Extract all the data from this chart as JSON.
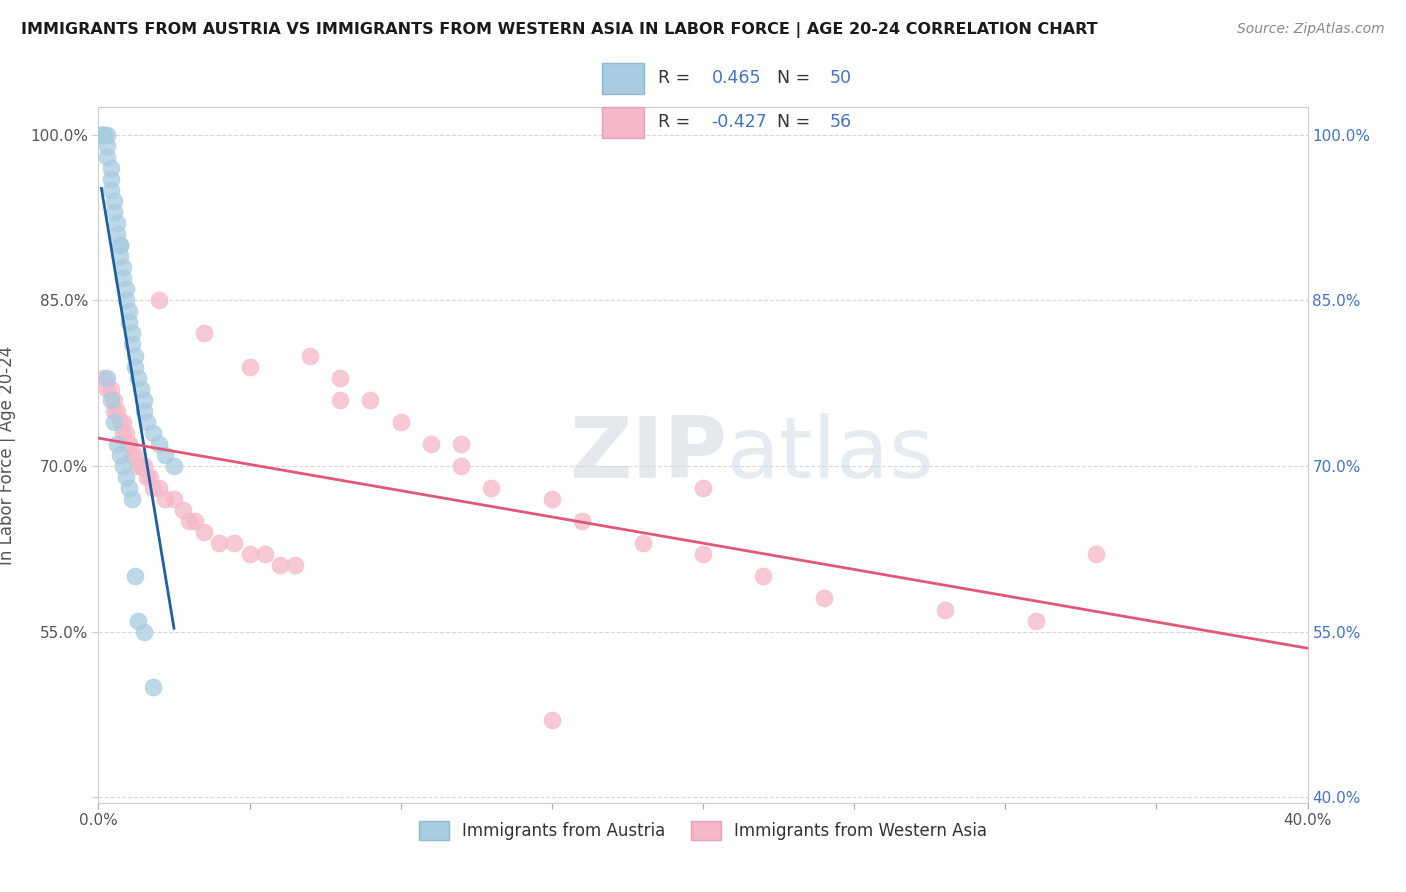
{
  "title": "IMMIGRANTS FROM AUSTRIA VS IMMIGRANTS FROM WESTERN ASIA IN LABOR FORCE | AGE 20-24 CORRELATION CHART",
  "source": "Source: ZipAtlas.com",
  "ylabel": "In Labor Force | Age 20-24",
  "legend_labels": [
    "Immigrants from Austria",
    "Immigrants from Western Asia"
  ],
  "blue_color": "#a8cce0",
  "pink_color": "#f4b8c8",
  "blue_line_color": "#2060a0",
  "pink_line_color": "#e05878",
  "xlim": [
    0.0,
    0.4
  ],
  "ylim": [
    0.395,
    1.025
  ],
  "xticks": [
    0.0,
    0.05,
    0.1,
    0.15,
    0.2,
    0.25,
    0.3,
    0.35,
    0.4
  ],
  "yticks": [
    0.4,
    0.55,
    0.7,
    0.85,
    1.0
  ],
  "watermark_text": "ZIPatlas",
  "background_color": "#ffffff",
  "grid_color": "#d8d8d8",
  "austria_x": [
    0.001,
    0.001,
    0.002,
    0.002,
    0.002,
    0.003,
    0.003,
    0.003,
    0.004,
    0.004,
    0.004,
    0.005,
    0.005,
    0.006,
    0.006,
    0.007,
    0.007,
    0.007,
    0.008,
    0.008,
    0.009,
    0.009,
    0.01,
    0.01,
    0.011,
    0.011,
    0.012,
    0.012,
    0.013,
    0.014,
    0.015,
    0.015,
    0.016,
    0.018,
    0.02,
    0.022,
    0.025,
    0.003,
    0.004,
    0.005,
    0.006,
    0.007,
    0.008,
    0.009,
    0.01,
    0.011,
    0.012,
    0.013,
    0.015,
    0.018
  ],
  "austria_y": [
    1.0,
    1.0,
    1.0,
    1.0,
    1.0,
    1.0,
    0.99,
    0.98,
    0.97,
    0.96,
    0.95,
    0.94,
    0.93,
    0.92,
    0.91,
    0.9,
    0.9,
    0.89,
    0.88,
    0.87,
    0.86,
    0.85,
    0.84,
    0.83,
    0.82,
    0.81,
    0.8,
    0.79,
    0.78,
    0.77,
    0.76,
    0.75,
    0.74,
    0.73,
    0.72,
    0.71,
    0.7,
    0.78,
    0.76,
    0.74,
    0.72,
    0.71,
    0.7,
    0.69,
    0.68,
    0.67,
    0.6,
    0.56,
    0.55,
    0.5
  ],
  "western_asia_x": [
    0.002,
    0.003,
    0.004,
    0.005,
    0.005,
    0.006,
    0.007,
    0.008,
    0.008,
    0.009,
    0.01,
    0.01,
    0.011,
    0.012,
    0.013,
    0.014,
    0.015,
    0.016,
    0.017,
    0.018,
    0.02,
    0.022,
    0.025,
    0.028,
    0.03,
    0.032,
    0.035,
    0.04,
    0.045,
    0.05,
    0.055,
    0.06,
    0.065,
    0.07,
    0.08,
    0.09,
    0.1,
    0.11,
    0.12,
    0.13,
    0.15,
    0.16,
    0.18,
    0.2,
    0.22,
    0.24,
    0.28,
    0.31,
    0.33,
    0.02,
    0.035,
    0.05,
    0.08,
    0.12,
    0.2,
    0.15
  ],
  "western_asia_y": [
    0.78,
    0.77,
    0.77,
    0.76,
    0.75,
    0.75,
    0.74,
    0.74,
    0.73,
    0.73,
    0.72,
    0.72,
    0.71,
    0.71,
    0.7,
    0.7,
    0.7,
    0.69,
    0.69,
    0.68,
    0.68,
    0.67,
    0.67,
    0.66,
    0.65,
    0.65,
    0.64,
    0.63,
    0.63,
    0.62,
    0.62,
    0.61,
    0.61,
    0.8,
    0.78,
    0.76,
    0.74,
    0.72,
    0.7,
    0.68,
    0.67,
    0.65,
    0.63,
    0.62,
    0.6,
    0.58,
    0.57,
    0.56,
    0.62,
    0.85,
    0.82,
    0.79,
    0.76,
    0.72,
    0.68,
    0.47
  ]
}
